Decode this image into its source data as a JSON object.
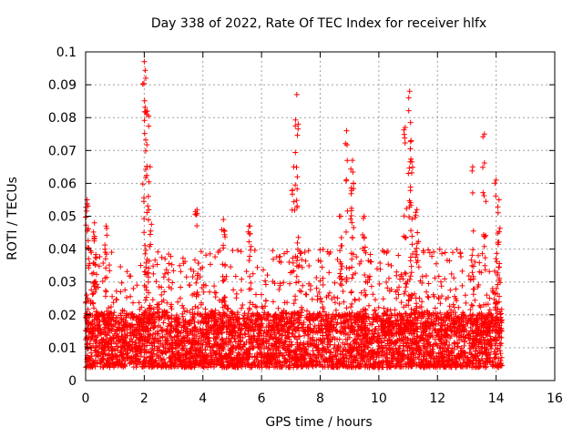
{
  "chart_data": {
    "type": "scatter",
    "title": "Day 338 of 2022, Rate Of TEC Index for receiver hlfx",
    "xlabel": "GPS time / hours",
    "ylabel": "ROTI / TECUs",
    "xlim": [
      0,
      16
    ],
    "ylim": [
      0,
      0.1
    ],
    "x_ticks": [
      "0",
      "2",
      "4",
      "6",
      "8",
      "10",
      "12",
      "14",
      "16"
    ],
    "y_ticks": [
      "0",
      "0.01",
      "0.02",
      "0.03",
      "0.04",
      "0.05",
      "0.06",
      "0.07",
      "0.08",
      "0.09",
      "0.1"
    ],
    "grid": true,
    "marker": "+",
    "marker_color": "#ff0000",
    "x_data_range": [
      0,
      14.2
    ],
    "background_band": {
      "x": [
        0,
        14.2
      ],
      "y_range": [
        0.004,
        0.02
      ]
    },
    "peaks": [
      {
        "x": 0.05,
        "y": 0.055
      },
      {
        "x": 0.3,
        "y": 0.048
      },
      {
        "x": 0.7,
        "y": 0.047
      },
      {
        "x": 2.0,
        "y": 0.097
      },
      {
        "x": 2.05,
        "y": 0.092
      },
      {
        "x": 2.1,
        "y": 0.082
      },
      {
        "x": 2.2,
        "y": 0.065
      },
      {
        "x": 3.8,
        "y": 0.052
      },
      {
        "x": 4.7,
        "y": 0.049
      },
      {
        "x": 5.6,
        "y": 0.047
      },
      {
        "x": 7.2,
        "y": 0.087
      },
      {
        "x": 7.25,
        "y": 0.078
      },
      {
        "x": 7.1,
        "y": 0.065
      },
      {
        "x": 8.9,
        "y": 0.076
      },
      {
        "x": 9.1,
        "y": 0.067
      },
      {
        "x": 8.7,
        "y": 0.05
      },
      {
        "x": 9.5,
        "y": 0.05
      },
      {
        "x": 10.9,
        "y": 0.077
      },
      {
        "x": 11.05,
        "y": 0.088
      },
      {
        "x": 11.1,
        "y": 0.073
      },
      {
        "x": 11.3,
        "y": 0.052
      },
      {
        "x": 13.2,
        "y": 0.065
      },
      {
        "x": 13.6,
        "y": 0.075
      },
      {
        "x": 14.0,
        "y": 0.061
      },
      {
        "x": 14.1,
        "y": 0.055
      }
    ]
  }
}
